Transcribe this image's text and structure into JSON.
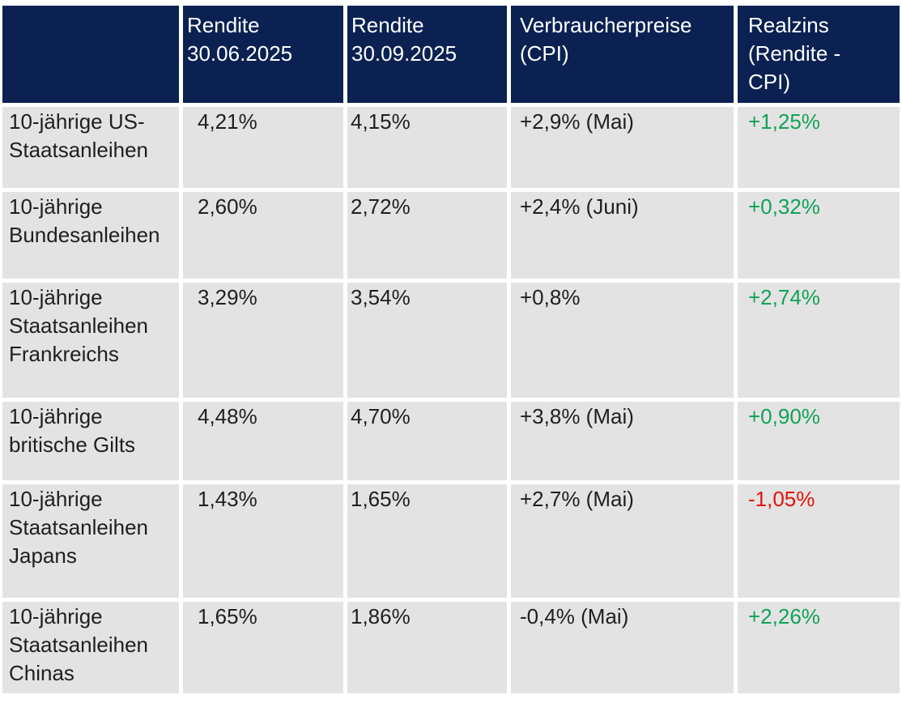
{
  "colors": {
    "header_bg": "#0A2151",
    "header_text": "#FFFFFF",
    "row_bg": "#E4E3E3",
    "body_text": "#1F1F1F",
    "positive": "#0FA357",
    "negative": "#E31309"
  },
  "table": {
    "header_cells": [
      "",
      "Rendite\n30.06.2025",
      "Rendite\n30.09.2025",
      "Verbraucherpreise\n(CPI)",
      "Realzins\n(Rendite -\nCPI)"
    ],
    "rows": [
      {
        "label": "10-jährige US-\nStaatsanleihen",
        "rendite_0625": "4,21%",
        "rendite_0925": "4,15%",
        "cpi": "+2,9% (Mai)",
        "realzins": "+1,25%"
      },
      {
        "label": "10-jährige\nBundesanleihen",
        "rendite_0625": "2,60%",
        "rendite_0925": "2,72%",
        "cpi": "+2,4% (Juni)",
        "realzins": "+0,32%"
      },
      {
        "label": "10-jährige\nStaatsanleihen\nFrankreichs",
        "rendite_0625": "3,29%",
        "rendite_0925": "3,54%",
        "cpi": "+0,8%",
        "realzins": "+2,74%"
      },
      {
        "label": "10-jährige\nbritische Gilts",
        "rendite_0625": "4,48%",
        "rendite_0925": "4,70%",
        "cpi": "+3,8% (Mai)",
        "realzins": "+0,90%"
      },
      {
        "label": "10-jährige\nStaatsanleihen\nJapans",
        "rendite_0625": "1,43%",
        "rendite_0925": "1,65%",
        "cpi": "+2,7% (Mai)",
        "realzins": "-1,05%"
      },
      {
        "label": "10-jährige\nStaatsanleihen\nChinas",
        "rendite_0625": "1,65%",
        "rendite_0925": "1,86%",
        "cpi": "-0,4% (Mai)",
        "realzins": "+2,26%"
      }
    ]
  },
  "chart_data": {
    "type": "table",
    "title": "",
    "columns": [
      "",
      "Rendite 30.06.2025",
      "Rendite 30.09.2025",
      "Verbraucherpreise (CPI)",
      "Realzins (Rendite - CPI)"
    ],
    "rows": [
      [
        "10-jährige US-Staatsanleihen",
        "4,21%",
        "4,15%",
        "+2,9% (Mai)",
        "+1,25%"
      ],
      [
        "10-jährige Bundesanleihen",
        "2,60%",
        "2,72%",
        "+2,4% (Juni)",
        "+0,32%"
      ],
      [
        "10-jährige Staatsanleihen Frankreichs",
        "3,29%",
        "3,54%",
        "+0,8%",
        "+2,74%"
      ],
      [
        "10-jährige britische Gilts",
        "4,48%",
        "4,70%",
        "+3,8% (Mai)",
        "+0,90%"
      ],
      [
        "10-jährige Staatsanleihen Japans",
        "1,43%",
        "1,65%",
        "+2,7% (Mai)",
        "-1,05%"
      ],
      [
        "10-jährige Staatsanleihen Chinas",
        "1,65%",
        "1,86%",
        "-0,4% (Mai)",
        "+2,26%"
      ]
    ],
    "notes": "Realzins column colored green when positive, red when negative"
  }
}
